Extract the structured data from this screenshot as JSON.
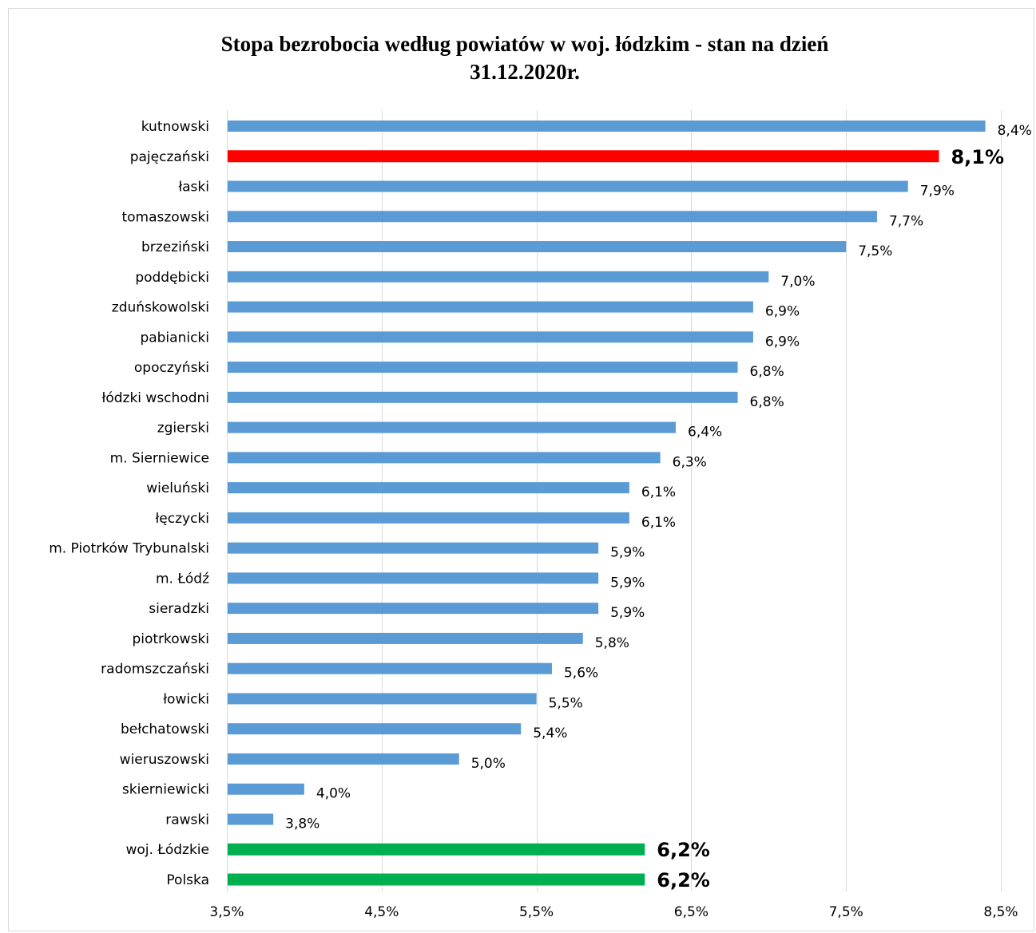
{
  "chart_data": {
    "type": "bar",
    "orientation": "horizontal",
    "title": "Stopa bezrobocia według powiatów w woj. łódzkim - stan na dzień 31.12.2020r.",
    "title_lines": [
      "Stopa bezrobocia według powiatów w woj. łódzkim - stan na dzień",
      "31.12.2020r."
    ],
    "xlabel": "",
    "ylabel": "",
    "xlim": [
      3.5,
      8.5
    ],
    "xticks": [
      3.5,
      4.5,
      5.5,
      6.5,
      7.5,
      8.5
    ],
    "xtick_labels": [
      "3,5%",
      "4,5%",
      "5,5%",
      "6,5%",
      "7,5%",
      "8,5%"
    ],
    "grid": "vertical",
    "legend": "none",
    "colors": {
      "default": "#5b9bd5",
      "highlight_red": "#ff0000",
      "highlight_green": "#00b050",
      "gridline": "#d9d9d9",
      "frame": "#d9d9d9"
    },
    "bars": [
      {
        "category": "kutnowski",
        "value": 8.4,
        "label": "8,4%",
        "color": "#5b9bd5",
        "emphasis": false
      },
      {
        "category": "pajęczański",
        "value": 8.1,
        "label": "8,1%",
        "color": "#ff0000",
        "emphasis": true
      },
      {
        "category": "łaski",
        "value": 7.9,
        "label": "7,9%",
        "color": "#5b9bd5",
        "emphasis": false
      },
      {
        "category": "tomaszowski",
        "value": 7.7,
        "label": "7,7%",
        "color": "#5b9bd5",
        "emphasis": false
      },
      {
        "category": "brzeziński",
        "value": 7.5,
        "label": "7,5%",
        "color": "#5b9bd5",
        "emphasis": false
      },
      {
        "category": "poddębicki",
        "value": 7.0,
        "label": "7,0%",
        "color": "#5b9bd5",
        "emphasis": false
      },
      {
        "category": "zduńskowolski",
        "value": 6.9,
        "label": "6,9%",
        "color": "#5b9bd5",
        "emphasis": false
      },
      {
        "category": "pabianicki",
        "value": 6.9,
        "label": "6,9%",
        "color": "#5b9bd5",
        "emphasis": false
      },
      {
        "category": "opoczyński",
        "value": 6.8,
        "label": "6,8%",
        "color": "#5b9bd5",
        "emphasis": false
      },
      {
        "category": "łódzki wschodni",
        "value": 6.8,
        "label": "6,8%",
        "color": "#5b9bd5",
        "emphasis": false
      },
      {
        "category": "zgierski",
        "value": 6.4,
        "label": "6,4%",
        "color": "#5b9bd5",
        "emphasis": false
      },
      {
        "category": "m. Sierniewice",
        "value": 6.3,
        "label": "6,3%",
        "color": "#5b9bd5",
        "emphasis": false
      },
      {
        "category": "wieluński",
        "value": 6.1,
        "label": "6,1%",
        "color": "#5b9bd5",
        "emphasis": false
      },
      {
        "category": "łęczycki",
        "value": 6.1,
        "label": "6,1%",
        "color": "#5b9bd5",
        "emphasis": false
      },
      {
        "category": "m. Piotrków Trybunalski",
        "value": 5.9,
        "label": "5,9%",
        "color": "#5b9bd5",
        "emphasis": false
      },
      {
        "category": "m. Łódź",
        "value": 5.9,
        "label": "5,9%",
        "color": "#5b9bd5",
        "emphasis": false
      },
      {
        "category": "sieradzki",
        "value": 5.9,
        "label": "5,9%",
        "color": "#5b9bd5",
        "emphasis": false
      },
      {
        "category": "piotrkowski",
        "value": 5.8,
        "label": "5,8%",
        "color": "#5b9bd5",
        "emphasis": false
      },
      {
        "category": "radomszczański",
        "value": 5.6,
        "label": "5,6%",
        "color": "#5b9bd5",
        "emphasis": false
      },
      {
        "category": "łowicki",
        "value": 5.5,
        "label": "5,5%",
        "color": "#5b9bd5",
        "emphasis": false
      },
      {
        "category": "bełchatowski",
        "value": 5.4,
        "label": "5,4%",
        "color": "#5b9bd5",
        "emphasis": false
      },
      {
        "category": "wieruszowski",
        "value": 5.0,
        "label": "5,0%",
        "color": "#5b9bd5",
        "emphasis": false
      },
      {
        "category": "skierniewicki",
        "value": 4.0,
        "label": "4,0%",
        "color": "#5b9bd5",
        "emphasis": false
      },
      {
        "category": "rawski",
        "value": 3.8,
        "label": "3,8%",
        "color": "#5b9bd5",
        "emphasis": false
      },
      {
        "category": "woj. Łódzkie",
        "value": 6.2,
        "label": "6,2%",
        "color": "#00b050",
        "emphasis": true
      },
      {
        "category": "Polska",
        "value": 6.2,
        "label": "6,2%",
        "color": "#00b050",
        "emphasis": true
      }
    ]
  }
}
